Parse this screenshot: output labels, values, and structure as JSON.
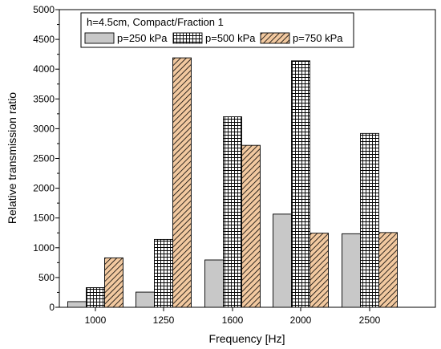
{
  "chart_data": {
    "type": "bar",
    "title": "",
    "xlabel": "Frequency [Hz]",
    "ylabel": "Relative transmission ratio",
    "ylim": [
      0,
      5000
    ],
    "yticks": [
      0,
      500,
      1000,
      1500,
      2000,
      2500,
      3000,
      3500,
      4000,
      4500,
      5000
    ],
    "categories": [
      "1000",
      "1250",
      "1600",
      "2000",
      "2500"
    ],
    "legend_title": "h=4.5cm, Compact/Fraction 1",
    "legend_position": "top-left",
    "grid": false,
    "series": [
      {
        "name": "p=250 kPa",
        "values": [
          95,
          255,
          795,
          1565,
          1235
        ],
        "fill": "#c8c8c8",
        "pattern": "solid"
      },
      {
        "name": "p=500 kPa",
        "values": [
          330,
          1140,
          3200,
          4140,
          2920
        ],
        "fill": "#ffffff",
        "pattern": "grid"
      },
      {
        "name": "p=750 kPa",
        "values": [
          830,
          4190,
          2720,
          1245,
          1255
        ],
        "fill": "#f2c9a0",
        "pattern": "diagonal"
      }
    ]
  }
}
